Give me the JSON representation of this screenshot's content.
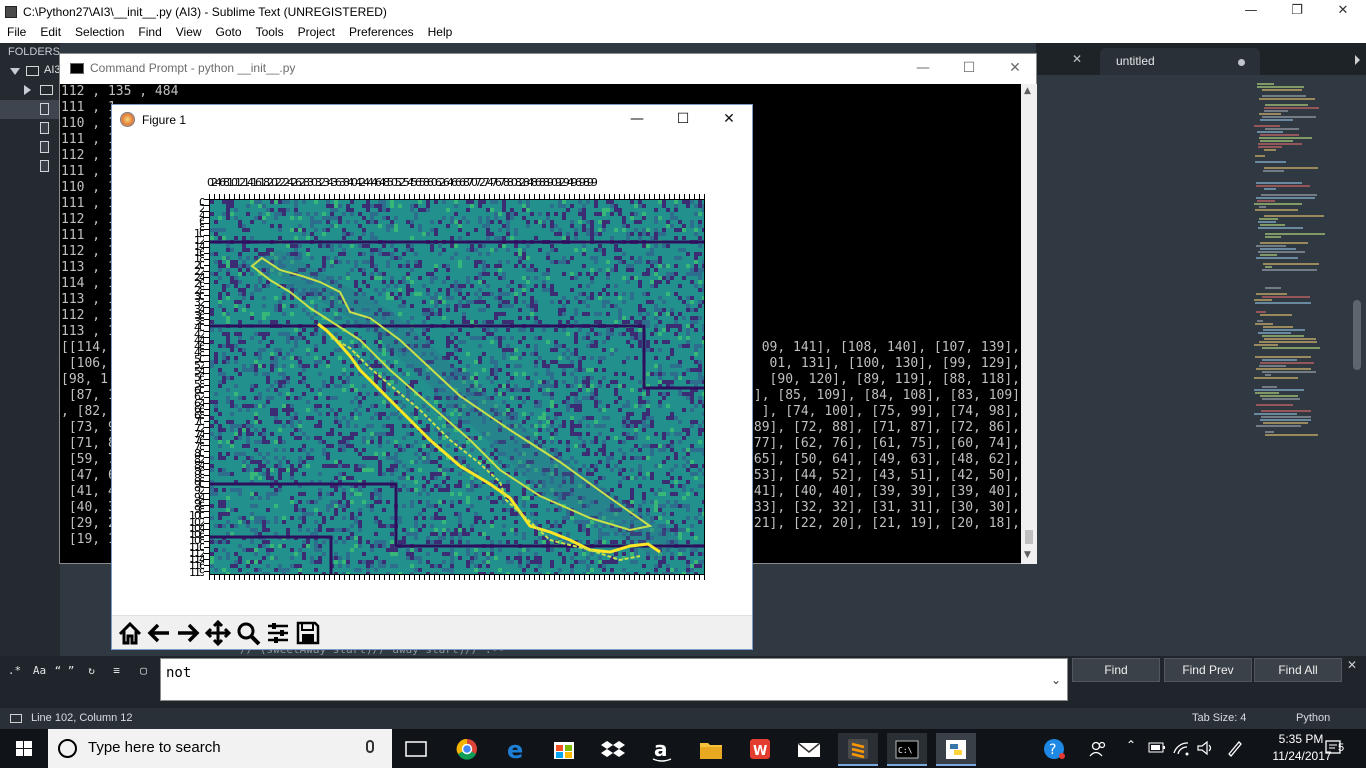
{
  "sublime": {
    "title": "C:\\Python27\\AI3\\__init__.py (AI3) - Sublime Text (UNREGISTERED)",
    "menu": [
      "File",
      "Edit",
      "Selection",
      "Find",
      "View",
      "Goto",
      "Tools",
      "Project",
      "Preferences",
      "Help"
    ],
    "sidebar": {
      "heading": "FOLDERS",
      "root_label": "AI3"
    },
    "tab_label": "untitled",
    "code_bottom_fragment": "//   (sweetAway start)//  away start)// :--",
    "find": {
      "value": "not",
      "buttons": [
        "Find",
        "Find Prev",
        "Find All"
      ],
      "options": [
        ".*",
        "Aa",
        "“ ”"
      ]
    },
    "status": {
      "line_col": "Line 102, Column 12",
      "tab_size": "Tab Size: 4",
      "syntax": "Python"
    }
  },
  "cmd": {
    "title": "Command Prompt - python  __init__.py",
    "left_lines": [
      "112 , 135 , 484",
      "111 , 1",
      "110 , 1",
      "111 , 1",
      "112 , 1",
      "111 , 1",
      "110 , 1",
      "111 , 1",
      "112 , 1",
      "111 , 1",
      "112 , 1",
      "113 , 1",
      "114 , 1",
      "113 , 1",
      "112 , 1",
      "113 , 1",
      "[[114,",
      " [106,",
      "[98, 1",
      " [87, 1",
      ", [82,",
      " [73, 9",
      " [71, 8",
      " [59, 7",
      " [47, 6",
      " [41, 4",
      " [40, 3",
      " [29, 2",
      " [19, 1"
    ],
    "right_lines": [
      "09, 141], [108, 140], [107, 139],",
      "01, 131], [100, 130], [99, 129],",
      " [90, 120], [89, 119], [88, 118],",
      "], [85, 109], [84, 108], [83, 109]",
      "], [74, 100], [75, 99], [74, 98],",
      "89], [72, 88], [71, 87], [72, 86],",
      "77], [62, 76], [61, 75], [60, 74],",
      "65], [50, 64], [49, 63], [48, 62],",
      "53], [44, 52], [43, 51], [42, 50],",
      "41], [40, 40], [39, 39], [39, 40],",
      "33], [32, 32], [31, 31], [30, 30],",
      "21], [22, 20], [21, 19], [20, 18],"
    ]
  },
  "figure": {
    "title": "Figure 1",
    "x_tick_text": "0246810121416182022242628303234363840424446485052545658606264666870727476788082848688909294969899",
    "y_tick_labels": [
      "0",
      "2",
      "4",
      "6",
      "8",
      "10",
      "12",
      "14",
      "16",
      "18",
      "20",
      "22",
      "24",
      "26",
      "28",
      "30",
      "32",
      "34",
      "36",
      "38",
      "40",
      "42",
      "44",
      "46",
      "48",
      "50",
      "52",
      "54",
      "56",
      "58",
      "60",
      "62",
      "64",
      "66",
      "68",
      "70",
      "72",
      "74",
      "76",
      "78",
      "80",
      "82",
      "84",
      "86",
      "88",
      "90",
      "92",
      "94",
      "96",
      "98",
      "100",
      "102",
      "104",
      "106",
      "108",
      "110",
      "112",
      "114",
      "116",
      "119"
    ],
    "toolbar": [
      "home-icon",
      "back-arrow-icon",
      "forward-arrow-icon",
      "pan-icon",
      "zoom-icon",
      "configure-subplots-icon",
      "save-icon"
    ],
    "colors": {
      "background": "#22908c",
      "dark": "#3b2c74",
      "mid": "#2d6e8e",
      "light": "#37b878",
      "path_outer": "#c8e04a",
      "path_inner": "#fde725",
      "barrier": "#2d0f5e"
    }
  },
  "taskbar": {
    "search_placeholder": "Type here to search",
    "clock_time": "5:35 PM",
    "clock_date": "11/24/2017",
    "notification_count": "5",
    "apps": [
      "task-view-icon",
      "chrome-icon",
      "edge-icon",
      "store-icon",
      "dropbox-icon",
      "amazon-icon",
      "file-explorer-icon",
      "wps-icon",
      "mail-icon",
      "sublime-icon",
      "cmd-icon",
      "python-icon"
    ]
  }
}
